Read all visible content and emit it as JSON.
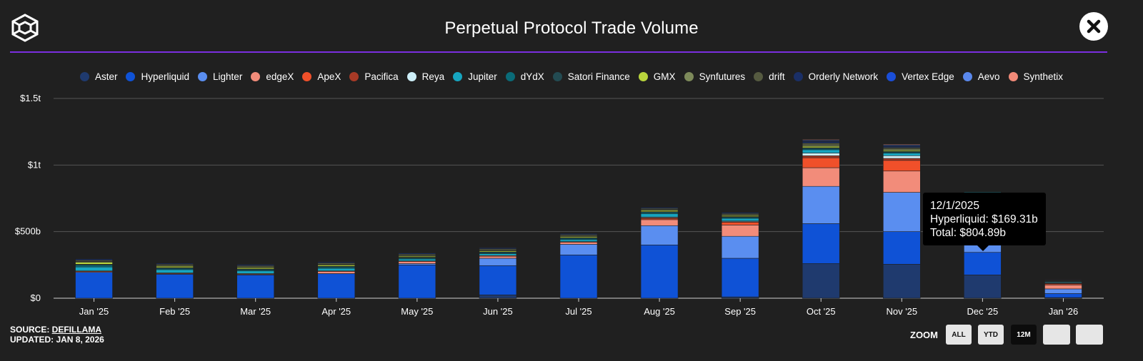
{
  "header": {
    "title": "Perpetual Protocol Trade Volume",
    "logo_icon": "cube-logo-icon",
    "close_icon": "close-icon"
  },
  "legend": [
    {
      "name": "Aster",
      "color": "#1f3a6e"
    },
    {
      "name": "Hyperliquid",
      "color": "#0f52d6"
    },
    {
      "name": "Lighter",
      "color": "#5a8ef0"
    },
    {
      "name": "edgeX",
      "color": "#f28c7a"
    },
    {
      "name": "ApeX",
      "color": "#f0502a"
    },
    {
      "name": "Pacifica",
      "color": "#a83a26"
    },
    {
      "name": "Reya",
      "color": "#cdeff8"
    },
    {
      "name": "Jupiter",
      "color": "#16a5c0"
    },
    {
      "name": "dYdX",
      "color": "#0a6b78"
    },
    {
      "name": "Satori Finance",
      "color": "#234b52"
    },
    {
      "name": "GMX",
      "color": "#b8d43c"
    },
    {
      "name": "Synfutures",
      "color": "#7d8a5a"
    },
    {
      "name": "drift",
      "color": "#555a40"
    },
    {
      "name": "Orderly Network",
      "color": "#1a2f66"
    },
    {
      "name": "Vertex Edge",
      "color": "#1a4ed8"
    },
    {
      "name": "Aevo",
      "color": "#5a88ec"
    },
    {
      "name": "Synthetix",
      "color": "#f28a78"
    }
  ],
  "chart_data": {
    "type": "bar",
    "stacked": true,
    "title": "Perpetual Protocol Trade Volume",
    "xlabel": "",
    "ylabel": "",
    "ylim": [
      0,
      1500
    ],
    "y_unit": "billions USD",
    "y_ticks": [
      {
        "value": 0,
        "label": "$0"
      },
      {
        "value": 500,
        "label": "$500b"
      },
      {
        "value": 1000,
        "label": "$1t"
      },
      {
        "value": 1500,
        "label": "$1.5t"
      }
    ],
    "grid": true,
    "categories": [
      "Jan '25",
      "Feb '25",
      "Mar '25",
      "Apr '25",
      "May '25",
      "Jun '25",
      "Jul '25",
      "Aug '25",
      "Sep '25",
      "Oct '25",
      "Nov '25",
      "Dec '25",
      "Jan '26"
    ],
    "series": [
      {
        "name": "Aster",
        "values": [
          0,
          0,
          0,
          0,
          0,
          25,
          0,
          0,
          10,
          260,
          255,
          175,
          5
        ]
      },
      {
        "name": "Hyperliquid",
        "values": [
          195,
          180,
          175,
          185,
          250,
          220,
          325,
          400,
          290,
          300,
          245,
          169.31,
          30
        ]
      },
      {
        "name": "Lighter",
        "values": [
          0,
          0,
          0,
          0,
          10,
          55,
          80,
          145,
          165,
          280,
          295,
          265,
          35
        ]
      },
      {
        "name": "edgeX",
        "values": [
          5,
          5,
          5,
          15,
          15,
          15,
          15,
          45,
          85,
          140,
          160,
          150,
          30
        ]
      },
      {
        "name": "ApeX",
        "values": [
          5,
          5,
          5,
          5,
          5,
          5,
          5,
          10,
          20,
          75,
          80,
          25,
          8
        ]
      },
      {
        "name": "Pacifica",
        "values": [
          0,
          0,
          0,
          0,
          0,
          0,
          0,
          5,
          5,
          15,
          15,
          10,
          4
        ]
      },
      {
        "name": "Reya",
        "values": [
          0,
          0,
          0,
          0,
          0,
          0,
          0,
          5,
          5,
          20,
          20,
          0,
          4
        ]
      },
      {
        "name": "Jupiter",
        "values": [
          30,
          25,
          20,
          20,
          15,
          15,
          15,
          25,
          20,
          25,
          20,
          5,
          6
        ]
      },
      {
        "name": "dYdX",
        "values": [
          15,
          10,
          10,
          10,
          8,
          8,
          10,
          10,
          8,
          10,
          8,
          2,
          3
        ]
      },
      {
        "name": "Satori Finance",
        "values": [
          5,
          5,
          5,
          5,
          5,
          5,
          5,
          5,
          5,
          5,
          5,
          1,
          2
        ]
      },
      {
        "name": "GMX",
        "values": [
          15,
          10,
          10,
          10,
          8,
          8,
          8,
          10,
          8,
          10,
          8,
          1,
          4
        ]
      },
      {
        "name": "Synfutures",
        "values": [
          5,
          5,
          5,
          5,
          5,
          5,
          5,
          5,
          5,
          10,
          10,
          0,
          2
        ]
      },
      {
        "name": "drift",
        "values": [
          10,
          10,
          10,
          10,
          10,
          10,
          10,
          10,
          10,
          15,
          10,
          1,
          3
        ]
      },
      {
        "name": "Orderly Network",
        "values": [
          10,
          8,
          8,
          8,
          8,
          8,
          8,
          8,
          8,
          12,
          10,
          0,
          4
        ]
      },
      {
        "name": "Vertex Edge",
        "values": [
          3,
          3,
          3,
          3,
          3,
          3,
          3,
          3,
          3,
          5,
          5,
          0,
          2
        ]
      },
      {
        "name": "Aevo",
        "values": [
          3,
          3,
          3,
          3,
          3,
          3,
          3,
          3,
          3,
          5,
          5,
          0,
          2
        ]
      },
      {
        "name": "Synthetix",
        "values": [
          3,
          3,
          3,
          3,
          3,
          3,
          3,
          3,
          3,
          5,
          5,
          0.58,
          2
        ]
      }
    ]
  },
  "tooltip": {
    "date": "12/1/2025",
    "line1": "Hyperliquid: $169.31b",
    "line2": "Total: $804.89b"
  },
  "footer": {
    "source_label": "SOURCE: ",
    "source_link": "DEFILLAMA",
    "updated": "UPDATED: JAN 8, 2026"
  },
  "zoom": {
    "label": "ZOOM",
    "buttons": [
      "ALL",
      "YTD",
      "12M"
    ],
    "active": "12M"
  }
}
